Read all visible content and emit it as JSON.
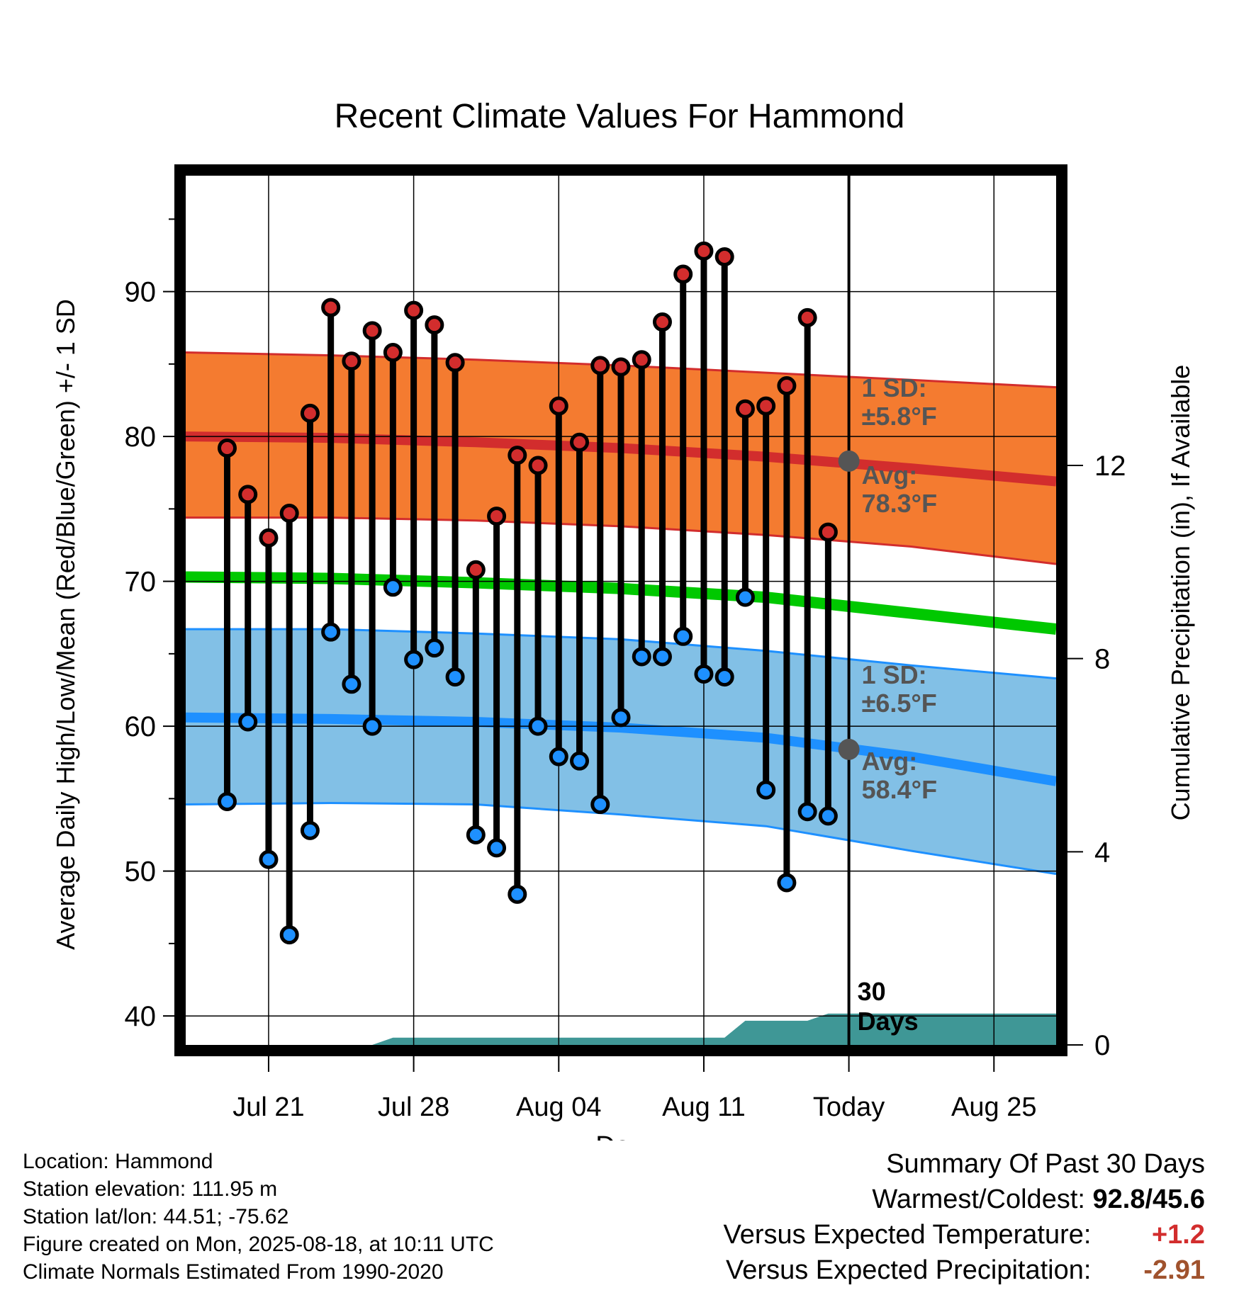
{
  "chart_data": {
    "type": "line",
    "title": "Recent Climate Values For Hammond",
    "xlabel": "Day",
    "ylabel": "Average Daily High/Low/Mean (Red/Blue/Green) +/- 1 SD",
    "y2label": "Cumulative Precipitation (in), If Available",
    "ylim": [
      38,
      98
    ],
    "y2lim": [
      0,
      18
    ],
    "yticks": [
      40,
      50,
      60,
      70,
      80,
      90
    ],
    "y2ticks": [
      0,
      4,
      8,
      12
    ],
    "xlim": [
      "2025-07-17",
      "2025-08-28"
    ],
    "xticks": [
      {
        "date": "2025-07-21",
        "label": "Jul 21"
      },
      {
        "date": "2025-07-28",
        "label": "Jul 28"
      },
      {
        "date": "2025-08-04",
        "label": "Aug 04"
      },
      {
        "date": "2025-08-11",
        "label": "Aug 11"
      },
      {
        "date": "2025-08-18",
        "label": "Today"
      },
      {
        "date": "2025-08-25",
        "label": "Aug 25"
      }
    ],
    "grid": true,
    "daily": [
      {
        "date": "2025-07-19",
        "high": 79.2,
        "low": 54.8
      },
      {
        "date": "2025-07-20",
        "high": 76.0,
        "low": 60.3
      },
      {
        "date": "2025-07-21",
        "high": 73.0,
        "low": 50.8
      },
      {
        "date": "2025-07-22",
        "high": 74.7,
        "low": 45.6
      },
      {
        "date": "2025-07-23",
        "high": 81.6,
        "low": 52.8
      },
      {
        "date": "2025-07-24",
        "high": 88.9,
        "low": 66.5
      },
      {
        "date": "2025-07-25",
        "high": 85.2,
        "low": 62.9
      },
      {
        "date": "2025-07-26",
        "high": 87.3,
        "low": 60.0
      },
      {
        "date": "2025-07-27",
        "high": 85.8,
        "low": 69.6
      },
      {
        "date": "2025-07-28",
        "high": 88.7,
        "low": 64.6
      },
      {
        "date": "2025-07-29",
        "high": 87.7,
        "low": 65.4
      },
      {
        "date": "2025-07-30",
        "high": 85.1,
        "low": 63.4
      },
      {
        "date": "2025-07-31",
        "high": 70.8,
        "low": 52.5
      },
      {
        "date": "2025-08-01",
        "high": 74.5,
        "low": 51.6
      },
      {
        "date": "2025-08-02",
        "high": 78.7,
        "low": 48.4
      },
      {
        "date": "2025-08-03",
        "high": 78.0,
        "low": 60.0
      },
      {
        "date": "2025-08-04",
        "high": 82.1,
        "low": 57.9
      },
      {
        "date": "2025-08-05",
        "high": 79.6,
        "low": 57.6
      },
      {
        "date": "2025-08-06",
        "high": 84.9,
        "low": 54.6
      },
      {
        "date": "2025-08-07",
        "high": 84.8,
        "low": 60.6
      },
      {
        "date": "2025-08-08",
        "high": 85.3,
        "low": 64.8
      },
      {
        "date": "2025-08-09",
        "high": 87.9,
        "low": 64.8
      },
      {
        "date": "2025-08-10",
        "high": 91.2,
        "low": 66.2
      },
      {
        "date": "2025-08-11",
        "high": 92.8,
        "low": 63.6
      },
      {
        "date": "2025-08-12",
        "high": 92.4,
        "low": 63.4
      },
      {
        "date": "2025-08-13",
        "high": 81.9,
        "low": 68.9
      },
      {
        "date": "2025-08-14",
        "high": 82.1,
        "low": 55.6
      },
      {
        "date": "2025-08-15",
        "high": 83.5,
        "low": 49.2
      },
      {
        "date": "2025-08-16",
        "high": 88.2,
        "low": 54.1
      },
      {
        "date": "2025-08-17",
        "high": 73.4,
        "low": 53.8
      }
    ],
    "normals": {
      "dates": [
        "2025-07-17",
        "2025-07-24",
        "2025-07-31",
        "2025-08-07",
        "2025-08-14",
        "2025-08-21",
        "2025-08-28"
      ],
      "high_mean": [
        80.0,
        79.9,
        79.6,
        79.2,
        78.6,
        77.8,
        76.9
      ],
      "high_upper": [
        85.8,
        85.6,
        85.3,
        84.9,
        84.4,
        83.9,
        83.4
      ],
      "high_lower": [
        74.4,
        74.4,
        74.2,
        73.8,
        73.2,
        72.4,
        71.2
      ],
      "low_mean": [
        60.6,
        60.5,
        60.3,
        59.9,
        59.2,
        57.9,
        56.2
      ],
      "low_upper": [
        66.7,
        66.7,
        66.4,
        66.0,
        65.2,
        64.2,
        63.3
      ],
      "low_lower": [
        54.6,
        54.7,
        54.6,
        53.9,
        53.1,
        51.4,
        49.8
      ],
      "mean": [
        70.3,
        70.2,
        69.9,
        69.5,
        68.9,
        67.8,
        66.7
      ]
    },
    "precip_cumulative": {
      "dates": [
        "2025-07-17",
        "2025-07-26",
        "2025-07-27",
        "2025-08-12",
        "2025-08-13",
        "2025-08-16",
        "2025-08-17",
        "2025-08-28"
      ],
      "values": [
        0.0,
        0.0,
        0.15,
        0.15,
        0.5,
        0.5,
        0.65,
        0.65
      ]
    },
    "annotations": {
      "high_sd_label": "1 SD:",
      "high_sd_value": "±5.8°F",
      "high_avg_label": "Avg:",
      "high_avg_value": "78.3°F",
      "low_sd_label": "1 SD:",
      "low_sd_value": "±6.5°F",
      "low_avg_label": "Avg:",
      "low_avg_value": "58.4°F",
      "today_label_1": "30",
      "today_label_2": "Days",
      "today_high_avg": 78.3,
      "today_low_avg": 58.4
    }
  },
  "footer": {
    "location": "Location: Hammond",
    "elevation": "Station elevation: 111.95 m",
    "latlon": "Station lat/lon: 44.51; -75.62",
    "created": "Figure created on Mon, 2025-08-18, at 10:11 UTC",
    "normals": "Climate Normals Estimated From 1990-2020"
  },
  "summary": {
    "title": "Summary Of Past 30 Days",
    "warmest_label": "Warmest/Coldest:",
    "warmest_value": "92.8/45.6",
    "temp_label": "Versus Expected Temperature:",
    "temp_value": "+1.2",
    "precip_label": "Versus Expected Precipitation:",
    "precip_value": "-2.91"
  },
  "colors": {
    "high_band": "#f47b30",
    "high_line": "#d22d2d",
    "low_band": "#82c0e6",
    "low_line": "#1e90ff",
    "mean_line": "#00c800",
    "precip": "#3f9796",
    "annotation": "#555555"
  }
}
